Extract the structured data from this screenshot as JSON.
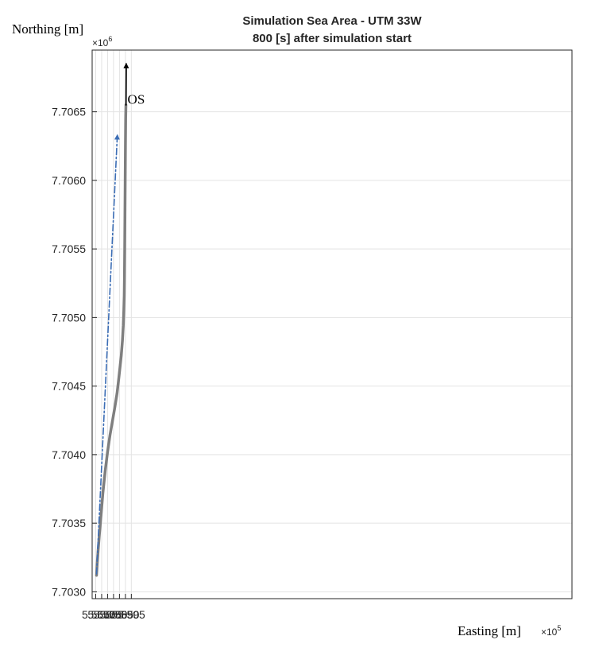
{
  "chart_data": {
    "type": "line",
    "title": "Simulation Sea Area - UTM 33W",
    "subtitle": "800 [s] after simulation start",
    "xlabel": "Easting [m]",
    "ylabel": "Northing [m]",
    "x_exponent_label": "×10",
    "x_exponent_power": "5",
    "y_exponent_label": "×10",
    "y_exponent_power": "6",
    "xlim": [
      556200,
      596600
    ],
    "ylim": [
      7702950,
      7706950
    ],
    "x_ticks": [
      556500,
      557000,
      557500,
      558000,
      558500,
      559000,
      559500
    ],
    "x_tick_labels": [
      "5.565",
      "5.570",
      "5.575",
      "5.580",
      "5.585",
      "5.590",
      "5.595"
    ],
    "y_ticks": [
      7703000,
      7703500,
      7704000,
      7704500,
      7705000,
      7705500,
      7706000,
      7706500
    ],
    "y_tick_labels": [
      "7.7030",
      "7.7035",
      "7.7040",
      "7.7045",
      "7.7050",
      "7.7055",
      "7.7060",
      "7.7065"
    ],
    "grid": true,
    "series": [
      {
        "color": "#7f7f7f",
        "style": "solid",
        "x": [
          556570,
          556620,
          556700,
          556800,
          556950,
          557100,
          557300,
          557500,
          557700,
          557900,
          558100,
          558300,
          558450,
          558550,
          558650,
          558750,
          558820,
          558870,
          558900,
          558920,
          558940,
          558960,
          558980,
          559000,
          559020,
          559040
        ],
        "y": [
          7703120,
          7703200,
          7703300,
          7703410,
          7703560,
          7703720,
          7703880,
          7704020,
          7704140,
          7704240,
          7704340,
          7704450,
          7704560,
          7704640,
          7704720,
          7704830,
          7704940,
          7705060,
          7705160,
          7705300,
          7705500,
          7705750,
          7706000,
          7706250,
          7706450,
          7706550
        ]
      },
      {
        "color": "#3b6db5",
        "style": "dash-dot",
        "x": [
          556570,
          558320
        ],
        "y": [
          7703130,
          7706330
        ]
      },
      {
        "color": "#000000",
        "style": "solid",
        "x": [
          559050,
          559070
        ],
        "y": [
          7706550,
          7706850
        ]
      }
    ],
    "annotations": [
      {
        "text": "OS",
        "x": 559180,
        "y": 7706560
      }
    ]
  }
}
